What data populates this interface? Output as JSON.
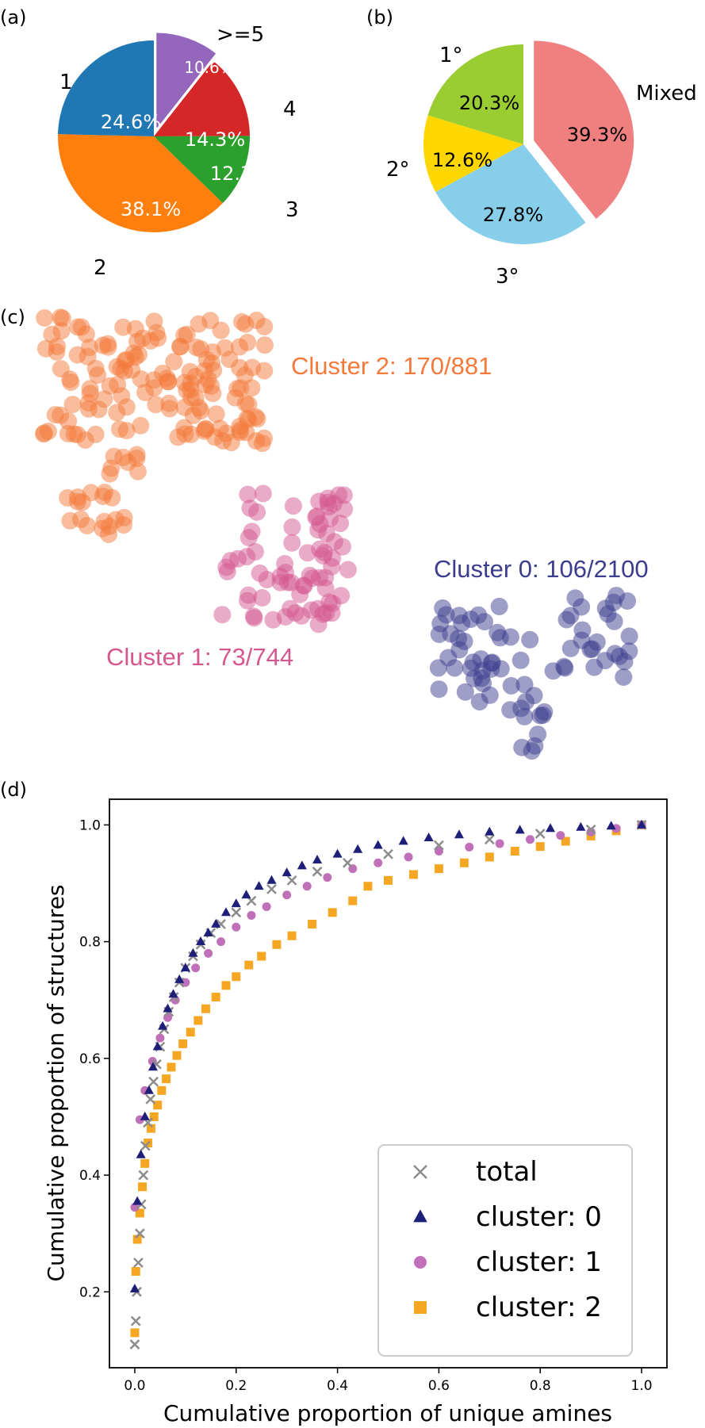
{
  "panel_labels": [
    "(a)",
    "(b)",
    "(c)",
    "(d)"
  ],
  "chart_data": [
    {
      "type": "pie",
      "panel": "(a)",
      "categories": [
        ">=5",
        "4",
        "3",
        "2",
        "1"
      ],
      "values": [
        10.6,
        14.3,
        12.3,
        38.1,
        24.6
      ],
      "value_labels": [
        "10.6%",
        "14.3%",
        "12.3%",
        "38.1%",
        "24.6%"
      ],
      "colors": [
        "#9467bd",
        "#d62728",
        "#2ca02c",
        "#ff7f0e",
        "#1f77b4"
      ],
      "exploded": ">=5"
    },
    {
      "type": "pie",
      "panel": "(b)",
      "categories": [
        "Mixed",
        "3°",
        "2°",
        "1°"
      ],
      "values": [
        39.3,
        27.8,
        12.6,
        20.3
      ],
      "value_labels": [
        "39.3%",
        "27.8%",
        "12.6%",
        "20.3%"
      ],
      "colors": [
        "#f08080",
        "#87ceeb",
        "#ffd700",
        "#9acd32"
      ],
      "exploded": "Mixed"
    },
    {
      "type": "scatter",
      "panel": "(c)",
      "clusters": [
        {
          "name": "Cluster 2: 170/881",
          "color": "#f4793a"
        },
        {
          "name": "Cluster 1: 73/744",
          "color": "#d4588f"
        },
        {
          "name": "Cluster 0: 106/2100",
          "color": "#3d3d8f"
        }
      ]
    },
    {
      "type": "scatter",
      "panel": "(d)",
      "xlabel": "Cumulative proportion of unique amines",
      "ylabel": "Cumulative proportion of structures",
      "xlim": [
        -0.05,
        1.05
      ],
      "ylim": [
        0.07,
        1.044
      ],
      "xticks": [
        "0.0",
        "0.2",
        "0.4",
        "0.6",
        "0.8",
        "1.0"
      ],
      "yticks": [
        "0.2",
        "0.4",
        "0.6",
        "0.8",
        "1.0"
      ],
      "legend_position": "lower right",
      "series": [
        {
          "name": "total",
          "marker": "x",
          "color": "#8c8c8c",
          "x": [
            0,
            0.002,
            0.004,
            0.007,
            0.01,
            0.013,
            0.017,
            0.021,
            0.026,
            0.031,
            0.037,
            0.043,
            0.05,
            0.058,
            0.067,
            0.077,
            0.088,
            0.1,
            0.115,
            0.13,
            0.15,
            0.17,
            0.2,
            0.23,
            0.27,
            0.31,
            0.36,
            0.42,
            0.5,
            0.6,
            0.7,
            0.8,
            0.9,
            1.0
          ],
          "y": [
            0.11,
            0.15,
            0.2,
            0.25,
            0.3,
            0.35,
            0.4,
            0.45,
            0.49,
            0.53,
            0.56,
            0.59,
            0.62,
            0.65,
            0.68,
            0.705,
            0.73,
            0.755,
            0.775,
            0.795,
            0.815,
            0.83,
            0.85,
            0.87,
            0.89,
            0.905,
            0.92,
            0.935,
            0.95,
            0.965,
            0.975,
            0.985,
            0.992,
            1.0
          ]
        },
        {
          "name": "cluster: 0",
          "marker": "triangle",
          "color": "#1f1f7a",
          "x": [
            0,
            0.005,
            0.012,
            0.02,
            0.028,
            0.036,
            0.045,
            0.055,
            0.065,
            0.076,
            0.088,
            0.1,
            0.115,
            0.13,
            0.145,
            0.16,
            0.18,
            0.2,
            0.22,
            0.245,
            0.27,
            0.3,
            0.33,
            0.36,
            0.4,
            0.44,
            0.48,
            0.53,
            0.58,
            0.64,
            0.7,
            0.76,
            0.82,
            0.88,
            0.94,
            1.0
          ],
          "y": [
            0.205,
            0.355,
            0.435,
            0.5,
            0.545,
            0.585,
            0.62,
            0.655,
            0.685,
            0.71,
            0.735,
            0.755,
            0.78,
            0.8,
            0.815,
            0.83,
            0.85,
            0.865,
            0.88,
            0.895,
            0.905,
            0.918,
            0.93,
            0.94,
            0.95,
            0.958,
            0.965,
            0.972,
            0.978,
            0.983,
            0.988,
            0.991,
            0.994,
            0.996,
            0.998,
            1.0
          ]
        },
        {
          "name": "cluster: 1",
          "marker": "circle",
          "color": "#c070b8",
          "x": [
            0,
            0.01,
            0.02,
            0.035,
            0.05,
            0.065,
            0.08,
            0.1,
            0.12,
            0.145,
            0.17,
            0.2,
            0.23,
            0.26,
            0.3,
            0.34,
            0.38,
            0.43,
            0.48,
            0.54,
            0.6,
            0.66,
            0.72,
            0.78,
            0.84,
            0.9,
            0.95,
            1.0
          ],
          "y": [
            0.345,
            0.495,
            0.545,
            0.595,
            0.635,
            0.67,
            0.7,
            0.73,
            0.755,
            0.78,
            0.8,
            0.825,
            0.845,
            0.86,
            0.88,
            0.895,
            0.91,
            0.925,
            0.935,
            0.945,
            0.955,
            0.962,
            0.968,
            0.975,
            0.982,
            0.988,
            0.994,
            1.0
          ]
        },
        {
          "name": "cluster: 2",
          "marker": "square",
          "color": "#f5a623",
          "x": [
            0,
            0.002,
            0.005,
            0.01,
            0.015,
            0.02,
            0.026,
            0.032,
            0.038,
            0.045,
            0.053,
            0.062,
            0.072,
            0.083,
            0.095,
            0.11,
            0.125,
            0.14,
            0.16,
            0.18,
            0.2,
            0.225,
            0.25,
            0.28,
            0.31,
            0.35,
            0.39,
            0.43,
            0.46,
            0.5,
            0.55,
            0.6,
            0.65,
            0.7,
            0.75,
            0.8,
            0.85,
            0.9,
            0.95,
            1.0
          ],
          "y": [
            0.13,
            0.235,
            0.29,
            0.335,
            0.38,
            0.42,
            0.455,
            0.48,
            0.5,
            0.52,
            0.545,
            0.565,
            0.585,
            0.605,
            0.625,
            0.645,
            0.665,
            0.685,
            0.705,
            0.725,
            0.74,
            0.76,
            0.775,
            0.795,
            0.81,
            0.83,
            0.85,
            0.87,
            0.895,
            0.905,
            0.915,
            0.925,
            0.935,
            0.945,
            0.955,
            0.963,
            0.972,
            0.981,
            0.99,
            1.0
          ]
        }
      ]
    }
  ]
}
